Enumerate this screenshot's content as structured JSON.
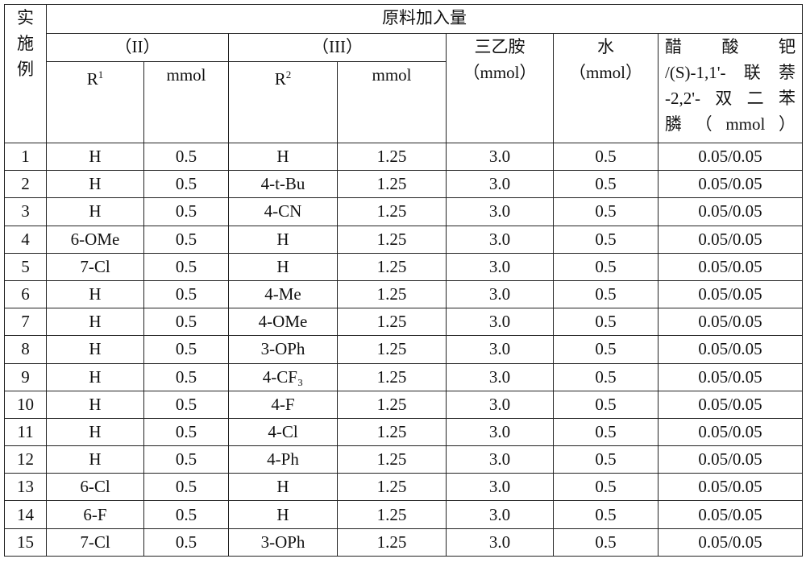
{
  "header": {
    "example_label": [
      "实",
      "施",
      "例"
    ],
    "group_title": "原料加入量",
    "compound_ii": "（II）",
    "compound_iii": "（III）",
    "r1": "R",
    "r1_sup": "1",
    "r2": "R",
    "r2_sup": "2",
    "mmol": "mmol",
    "triethylamine": "三乙胺",
    "triethylamine_unit": "（mmol）",
    "water": "水",
    "water_unit": "（mmol）",
    "catalyst_lines": [
      "醋　酸　钯",
      "/(S)-1,1'-联萘",
      "-2,2'-双二苯",
      "膦（mmol）"
    ]
  },
  "rows": [
    [
      "1",
      "H",
      "0.5",
      "H",
      "1.25",
      "3.0",
      "0.5",
      "0.05/0.05"
    ],
    [
      "2",
      "H",
      "0.5",
      "4-t-Bu",
      "1.25",
      "3.0",
      "0.5",
      "0.05/0.05"
    ],
    [
      "3",
      "H",
      "0.5",
      "4-CN",
      "1.25",
      "3.0",
      "0.5",
      "0.05/0.05"
    ],
    [
      "4",
      "6-OMe",
      "0.5",
      "H",
      "1.25",
      "3.0",
      "0.5",
      "0.05/0.05"
    ],
    [
      "5",
      "7-Cl",
      "0.5",
      "H",
      "1.25",
      "3.0",
      "0.5",
      "0.05/0.05"
    ],
    [
      "6",
      "H",
      "0.5",
      "4-Me",
      "1.25",
      "3.0",
      "0.5",
      "0.05/0.05"
    ],
    [
      "7",
      "H",
      "0.5",
      "4-OMe",
      "1.25",
      "3.0",
      "0.5",
      "0.05/0.05"
    ],
    [
      "8",
      "H",
      "0.5",
      "3-OPh",
      "1.25",
      "3.0",
      "0.5",
      "0.05/0.05"
    ],
    [
      "9",
      "H",
      "0.5",
      "4-CF₃",
      "1.25",
      "3.0",
      "0.5",
      "0.05/0.05"
    ],
    [
      "10",
      "H",
      "0.5",
      "4-F",
      "1.25",
      "3.0",
      "0.5",
      "0.05/0.05"
    ],
    [
      "11",
      "H",
      "0.5",
      "4-Cl",
      "1.25",
      "3.0",
      "0.5",
      "0.05/0.05"
    ],
    [
      "12",
      "H",
      "0.5",
      "4-Ph",
      "1.25",
      "3.0",
      "0.5",
      "0.05/0.05"
    ],
    [
      "13",
      "6-Cl",
      "0.5",
      "H",
      "1.25",
      "3.0",
      "0.5",
      "0.05/0.05"
    ],
    [
      "14",
      "6-F",
      "0.5",
      "H",
      "1.25",
      "3.0",
      "0.5",
      "0.05/0.05"
    ],
    [
      "15",
      "7-Cl",
      "0.5",
      "3-OPh",
      "1.25",
      "3.0",
      "0.5",
      "0.05/0.05"
    ]
  ]
}
